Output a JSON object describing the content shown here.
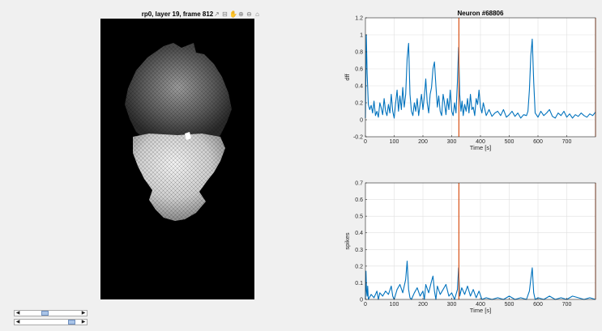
{
  "image_panel": {
    "title": "rp0, layer 19, frame 812",
    "toolbar_icons": [
      "pan-icon",
      "zoom-box-icon",
      "hand-icon",
      "zoom-in-icon",
      "zoom-out-icon",
      "home-icon"
    ],
    "toolbar_glyphs": [
      "↗",
      "⊟",
      "✋",
      "⊕",
      "⊖",
      "⌂"
    ]
  },
  "colors": {
    "trace": "#0072bd",
    "cursor": "#d95319",
    "grid": "#dfdfdf",
    "panel_bg": "#ffffff",
    "figure_bg": "#f0f0f0"
  },
  "cursor_time": 325,
  "sliders": [
    {
      "name": "layer-slider",
      "position_fraction": 0.38
    },
    {
      "name": "frame-slider",
      "position_fraction": 0.88
    }
  ],
  "chart_data": [
    {
      "type": "line",
      "title": "Neuron #68806",
      "xlabel": "Time [s]",
      "ylabel": "dff",
      "xlim": [
        0,
        800
      ],
      "ylim": [
        -0.2,
        1.2
      ],
      "xticks": [
        0,
        100,
        200,
        300,
        400,
        500,
        600,
        700
      ],
      "yticks": [
        -0.2,
        0,
        0.2,
        0.4,
        0.6,
        0.8,
        1,
        1.2
      ],
      "ytick_labels": [
        "-0.2",
        "0",
        "0.2",
        "0.4",
        "0.6",
        "0.8",
        "1",
        "1.2"
      ],
      "grid": true,
      "series": [
        {
          "x": [
            0,
            3,
            6,
            10,
            15,
            20,
            25,
            30,
            35,
            40,
            45,
            50,
            55,
            60,
            65,
            70,
            75,
            80,
            85,
            90,
            95,
            100,
            105,
            110,
            115,
            120,
            125,
            130,
            135,
            140,
            145,
            150,
            155,
            160,
            165,
            170,
            175,
            180,
            185,
            190,
            195,
            200,
            205,
            210,
            215,
            220,
            225,
            230,
            235,
            240,
            245,
            250,
            255,
            260,
            265,
            270,
            275,
            280,
            285,
            290,
            295,
            300,
            305,
            310,
            315,
            320,
            324,
            328,
            332,
            336,
            340,
            345,
            350,
            355,
            360,
            365,
            370,
            375,
            380,
            385,
            390,
            395,
            400,
            405,
            410,
            420,
            430,
            440,
            450,
            460,
            470,
            480,
            490,
            500,
            510,
            520,
            530,
            540,
            550,
            560,
            565,
            570,
            575,
            580,
            585,
            590,
            600,
            610,
            620,
            630,
            640,
            650,
            660,
            670,
            680,
            690,
            700,
            710,
            720,
            730,
            740,
            750,
            760,
            770,
            780,
            790,
            800
          ],
          "y": [
            0.02,
            1.0,
            0.55,
            0.18,
            0.12,
            0.17,
            0.08,
            0.22,
            0.05,
            0.1,
            0.03,
            0.2,
            0.14,
            0.06,
            0.25,
            0.1,
            0.05,
            0.18,
            0.08,
            0.3,
            0.1,
            0.02,
            0.2,
            0.35,
            0.1,
            0.28,
            0.12,
            0.38,
            0.15,
            0.3,
            0.72,
            0.9,
            0.3,
            0.1,
            0.05,
            0.2,
            0.1,
            0.25,
            0.05,
            0.18,
            0.3,
            0.12,
            0.28,
            0.48,
            0.2,
            0.08,
            0.3,
            0.38,
            0.6,
            0.68,
            0.4,
            0.15,
            0.28,
            0.1,
            0.05,
            0.3,
            0.2,
            0.06,
            0.25,
            0.12,
            0.35,
            0.1,
            0.05,
            0.2,
            0.08,
            0.45,
            0.85,
            0.3,
            0.1,
            0.22,
            0.05,
            0.18,
            0.1,
            0.25,
            0.08,
            0.3,
            0.12,
            0.15,
            0.05,
            0.25,
            0.18,
            0.35,
            0.15,
            0.08,
            0.2,
            0.05,
            0.12,
            0.04,
            0.08,
            0.1,
            0.05,
            0.12,
            0.03,
            0.06,
            0.1,
            0.04,
            0.08,
            0.02,
            0.06,
            0.05,
            0.1,
            0.35,
            0.75,
            0.95,
            0.45,
            0.08,
            0.03,
            0.1,
            0.05,
            0.08,
            0.12,
            0.04,
            0.02,
            0.08,
            0.05,
            0.1,
            0.03,
            0.07,
            0.02,
            0.06,
            0.04,
            0.08,
            0.05,
            0.03,
            0.07,
            0.05,
            0.09
          ]
        }
      ]
    },
    {
      "type": "line",
      "title": "",
      "xlabel": "Time [s]",
      "ylabel": "spikes",
      "xlim": [
        0,
        800
      ],
      "ylim": [
        0,
        0.7
      ],
      "xticks": [
        0,
        100,
        200,
        300,
        400,
        500,
        600,
        700
      ],
      "yticks": [
        0,
        0.1,
        0.2,
        0.3,
        0.4,
        0.5,
        0.6,
        0.7
      ],
      "ytick_labels": [
        "0",
        "0.1",
        "0.2",
        "0.3",
        "0.4",
        "0.5",
        "0.6",
        "0.7"
      ],
      "grid": true,
      "series": [
        {
          "x": [
            0,
            2,
            4,
            6,
            8,
            10,
            20,
            30,
            40,
            45,
            50,
            60,
            70,
            80,
            90,
            95,
            100,
            110,
            120,
            130,
            140,
            145,
            150,
            155,
            160,
            170,
            180,
            190,
            200,
            205,
            210,
            220,
            230,
            235,
            240,
            245,
            250,
            260,
            270,
            280,
            290,
            300,
            310,
            320,
            324,
            328,
            335,
            345,
            355,
            365,
            375,
            385,
            395,
            405,
            420,
            440,
            460,
            480,
            500,
            520,
            540,
            560,
            570,
            575,
            580,
            585,
            590,
            600,
            620,
            640,
            660,
            680,
            700,
            720,
            740,
            760,
            780,
            800
          ],
          "y": [
            0.0,
            0.17,
            0.05,
            0.02,
            0.08,
            0.0,
            0.03,
            0.01,
            0.05,
            0.0,
            0.04,
            0.02,
            0.05,
            0.03,
            0.08,
            0.02,
            0.0,
            0.06,
            0.09,
            0.04,
            0.12,
            0.23,
            0.06,
            0.01,
            0.0,
            0.04,
            0.07,
            0.02,
            0.05,
            0.0,
            0.09,
            0.04,
            0.11,
            0.14,
            0.05,
            0.0,
            0.08,
            0.03,
            0.06,
            0.09,
            0.02,
            0.04,
            0.0,
            0.06,
            0.19,
            0.02,
            0.07,
            0.03,
            0.08,
            0.02,
            0.06,
            0.01,
            0.05,
            0.0,
            0.01,
            0.0,
            0.01,
            0.0,
            0.02,
            0.0,
            0.01,
            0.0,
            0.05,
            0.12,
            0.19,
            0.04,
            0.0,
            0.01,
            0.0,
            0.02,
            0.0,
            0.01,
            0.0,
            0.02,
            0.01,
            0.0,
            0.01,
            0.0
          ]
        }
      ]
    }
  ]
}
